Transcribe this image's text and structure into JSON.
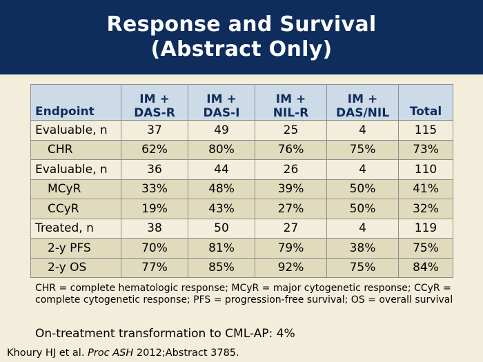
{
  "title": {
    "line1": "Response and Survival",
    "line2": "(Abstract Only)"
  },
  "table": {
    "headers": [
      {
        "l1": "",
        "l2": "Endpoint"
      },
      {
        "l1": "IM +",
        "l2": "DAS-R"
      },
      {
        "l1": "IM +",
        "l2": "DAS-I"
      },
      {
        "l1": "IM +",
        "l2": "NIL-R"
      },
      {
        "l1": "IM +",
        "l2": "DAS/NIL"
      },
      {
        "l1": "",
        "l2": "Total"
      }
    ],
    "rows": [
      {
        "label": "Evaluable, n",
        "cells": [
          "37",
          "49",
          "25",
          "4",
          "115"
        ]
      },
      {
        "label": "CHR",
        "cells": [
          "62%",
          "80%",
          "76%",
          "75%",
          "73%"
        ]
      },
      {
        "label": "Evaluable, n",
        "cells": [
          "36",
          "44",
          "26",
          "4",
          "110"
        ]
      },
      {
        "label": "MCyR",
        "cells": [
          "33%",
          "48%",
          "39%",
          "50%",
          "41%"
        ]
      },
      {
        "label": "CCyR",
        "cells": [
          "19%",
          "43%",
          "27%",
          "50%",
          "32%"
        ]
      },
      {
        "label": "Treated, n",
        "cells": [
          "38",
          "50",
          "27",
          "4",
          "119"
        ]
      },
      {
        "label": "2-y PFS",
        "cells": [
          "70%",
          "81%",
          "79%",
          "38%",
          "75%"
        ]
      },
      {
        "label": "2-y OS",
        "cells": [
          "77%",
          "85%",
          "92%",
          "75%",
          "84%"
        ]
      }
    ]
  },
  "footnote": "CHR = complete hematologic response; MCyR = major cytogenetic response; CCyR = complete cytogenetic response; PFS = progression-free survival; OS = overall survival",
  "transformation": "On-treatment transformation to CML-AP: 4%",
  "citation": {
    "authors": "Khoury HJ et al.",
    "journal": "Proc ASH",
    "rest": "2012;Abstract 3785."
  }
}
